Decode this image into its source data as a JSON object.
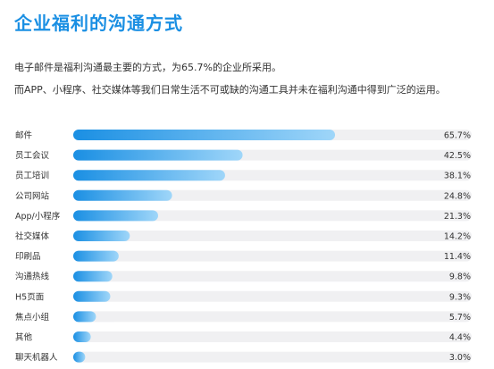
{
  "title": "企业福利的沟通方式",
  "description": [
    "电子邮件是福利沟通最主要的方式，为65.7%的企业所采用。",
    "而APP、小程序、社交媒体等我们日常生活不可或缺的沟通工具并未在福利沟通中得到广泛的运用。"
  ],
  "colors": {
    "accent": "#1a8fe3",
    "bar_start": "#1a8fe3",
    "bar_end": "#9fd6f9",
    "track": "#f0f0f2"
  },
  "chart_data": {
    "type": "bar",
    "orientation": "horizontal",
    "categories": [
      "邮件",
      "员工会议",
      "员工培训",
      "公司网站",
      "App/小程序",
      "社交媒体",
      "印刷品",
      "沟通热线",
      "H5页面",
      "焦点小组",
      "其他",
      "聊天机器人"
    ],
    "values": [
      65.7,
      42.5,
      38.1,
      24.8,
      21.3,
      14.2,
      11.4,
      9.8,
      9.3,
      5.7,
      4.4,
      3.0
    ],
    "value_labels": [
      "65.7%",
      "42.5%",
      "38.1%",
      "24.8%",
      "21.3%",
      "14.2%",
      "11.4%",
      "9.8%",
      "9.3%",
      "5.7%",
      "4.4%",
      "3.0%"
    ],
    "xlim": [
      0,
      100
    ],
    "grid": false,
    "legend": "none"
  }
}
